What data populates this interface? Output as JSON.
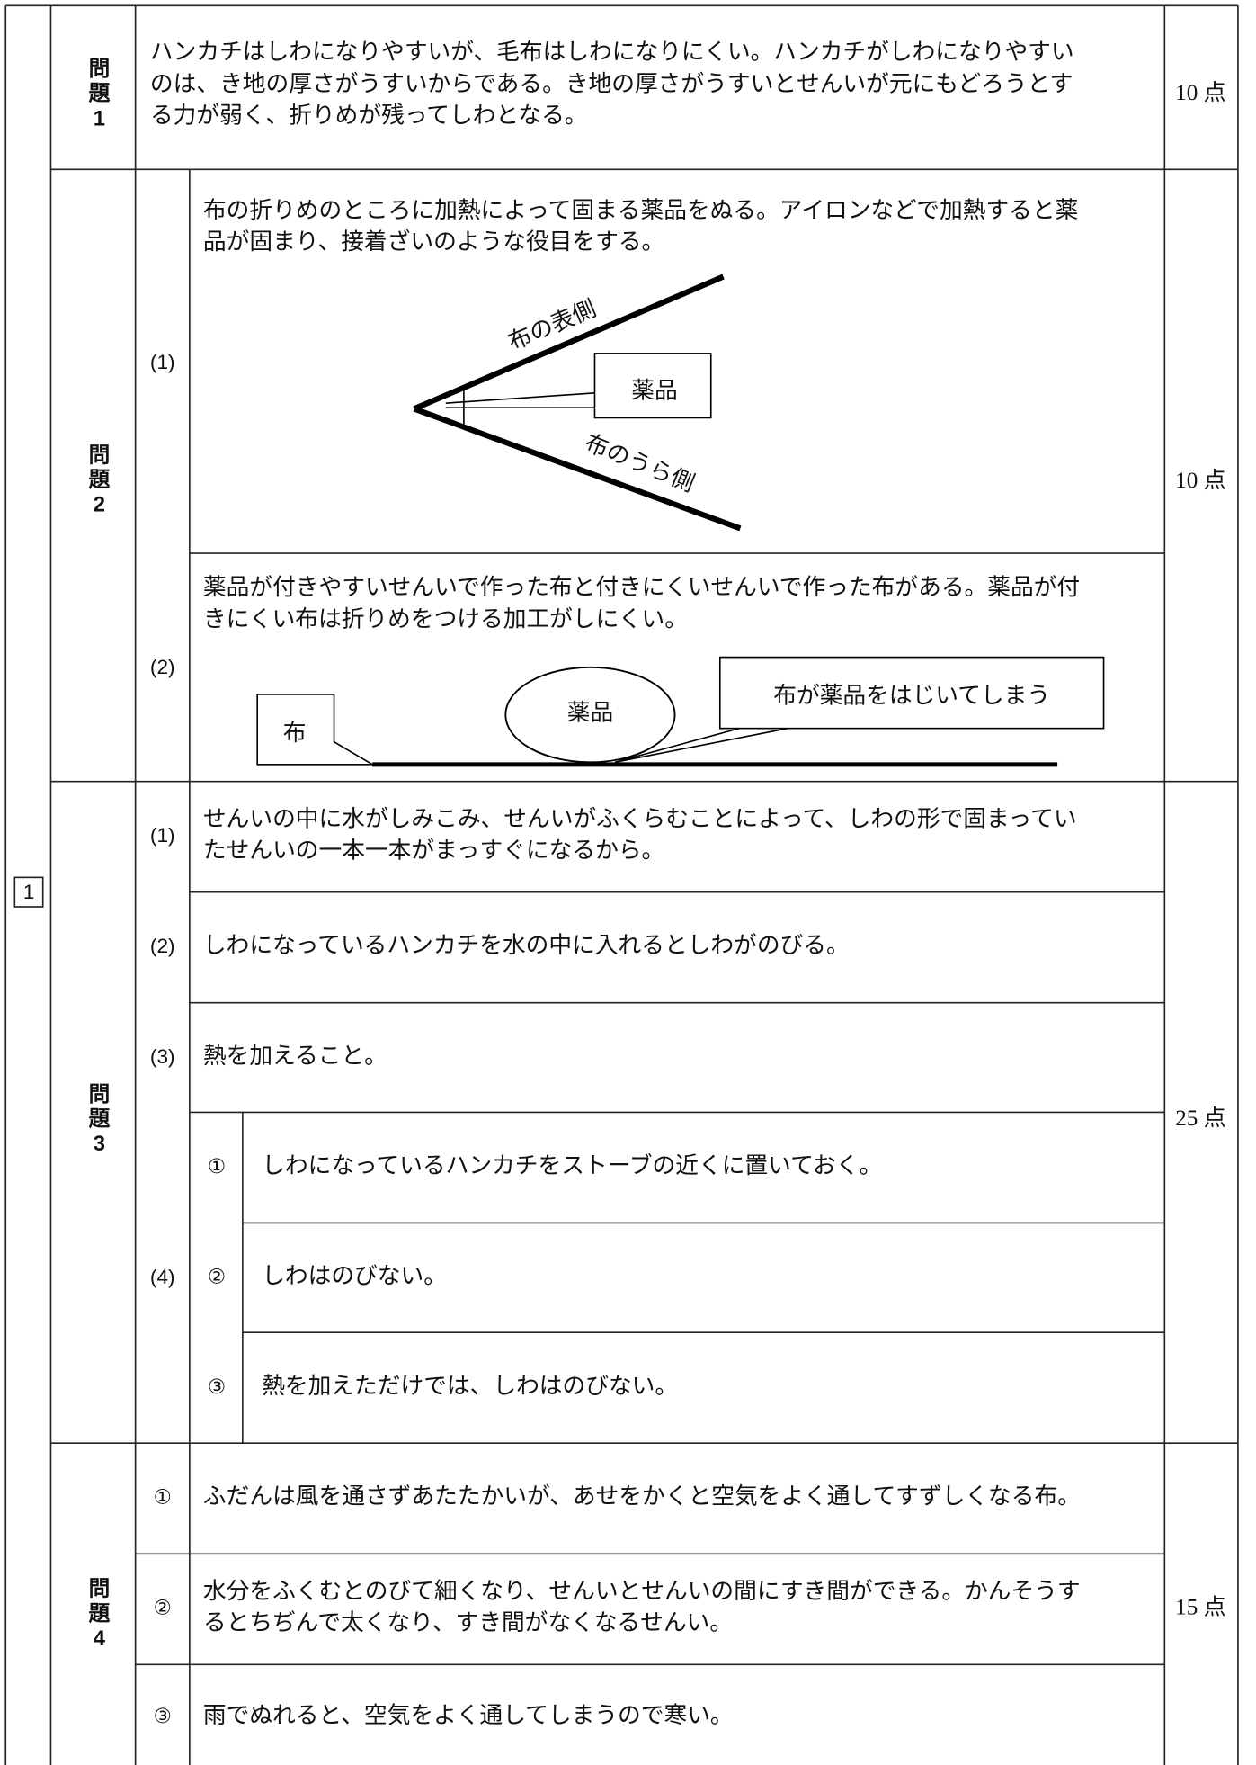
{
  "section_label": "1",
  "problem1": {
    "label": [
      "問",
      "題",
      "1"
    ],
    "points": "10 点",
    "answer": [
      "ハンカチはしわになりやすいが、毛布はしわになりにくい。ハンカチがしわになりやすい",
      "のは、き地の厚さがうすいからである。き地の厚さがうすいとせんいが元にもどろうとす",
      "る力が弱く、折りめが残ってしわとなる。"
    ]
  },
  "problem2": {
    "label": [
      "問",
      "題",
      "2"
    ],
    "points": "10 点",
    "parts": [
      {
        "label": "(1)",
        "answer": [
          "布の折りめのところに加熱によって固まる薬品をぬる。アイロンなどで加熱すると薬",
          "品が固まり、接着ざいのような役目をする。"
        ],
        "diagram": {
          "front": "布の表側",
          "chemical": "薬品",
          "back": "布のうら側"
        }
      },
      {
        "label": "(2)",
        "answer": [
          "薬品が付きやすいせんいで作った布と付きにくいせんいで作った布がある。薬品が付",
          "きにくい布は折りめをつける加工がしにくい。"
        ],
        "diagram": {
          "cloth": "布",
          "chemical": "薬品",
          "note": "布が薬品をはじいてしまう"
        }
      }
    ]
  },
  "problem3": {
    "label": [
      "問",
      "題",
      "3"
    ],
    "points": "25 点",
    "parts": [
      {
        "label": "(1)",
        "answer": [
          "せんいの中に水がしみこみ、せんいがふくらむことによって、しわの形で固まってい",
          "たせんいの一本一本がまっすぐになるから。"
        ]
      },
      {
        "label": "(2)",
        "answer": [
          "しわになっているハンカチを水の中に入れるとしわがのびる。"
        ]
      },
      {
        "label": "(3)",
        "answer": [
          "熱を加えること。"
        ]
      },
      {
        "label": "(4)",
        "items": [
          {
            "label": "①",
            "answer": "しわになっているハンカチをストーブの近くに置いておく。"
          },
          {
            "label": "②",
            "answer": "しわはのびない。"
          },
          {
            "label": "③",
            "answer": "熱を加えただけでは、しわはのびない。"
          }
        ]
      }
    ]
  },
  "problem4": {
    "label": [
      "問",
      "題",
      "4"
    ],
    "points": "15 点",
    "items": [
      {
        "label": "①",
        "answer": [
          "ふだんは風を通さずあたたかいが、あせをかくと空気をよく通してすずしくなる布。"
        ]
      },
      {
        "label": "②",
        "answer": [
          "水分をふくむとのびて細くなり、せんいとせんいの間にすき間ができる。かんそうす",
          "るとちぢんで太くなり、すき間がなくなるせんい。"
        ]
      },
      {
        "label": "③",
        "answer": [
          "雨でぬれると、空気をよく通してしまうので寒い。"
        ]
      }
    ]
  }
}
